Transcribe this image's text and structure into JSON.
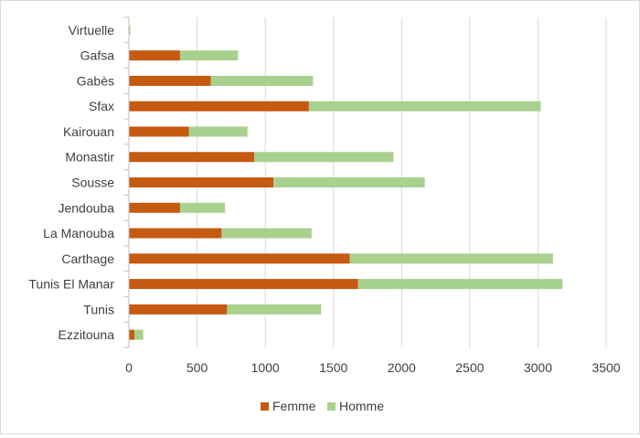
{
  "chart_data": {
    "type": "bar",
    "orientation": "horizontal",
    "stacked": true,
    "categories": [
      "Virtuelle",
      "Gafsa",
      "Gabès",
      "Sfax",
      "Kairouan",
      "Monastir",
      "Sousse",
      "Jendouba",
      "La Manouba",
      "Carthage",
      "Tunis El Manar",
      "Tunis",
      "Ezzitouna"
    ],
    "series": [
      {
        "name": "Femme",
        "color": "#c55a11",
        "values": [
          2,
          375,
          600,
          1320,
          440,
          920,
          1060,
          375,
          680,
          1620,
          1680,
          720,
          40
        ]
      },
      {
        "name": "Homme",
        "color": "#a9d18e",
        "values": [
          8,
          425,
          750,
          1700,
          430,
          1020,
          1110,
          330,
          660,
          1490,
          1500,
          690,
          65
        ]
      }
    ],
    "xlim": [
      0,
      3500
    ],
    "xticks": [
      0,
      500,
      1000,
      1500,
      2000,
      2500,
      3000,
      3500
    ],
    "grid": "vertical",
    "legend": "bottom",
    "title": "",
    "xlabel": "",
    "ylabel": ""
  }
}
